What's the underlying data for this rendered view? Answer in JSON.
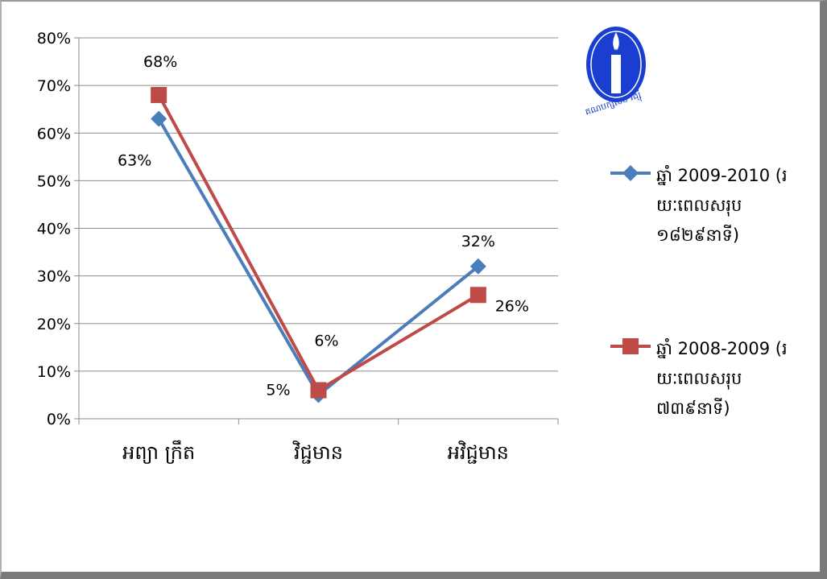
{
  "chart_data": {
    "type": "line",
    "categories": [
      "អព្យា ក្រឹត",
      "វិជ្ជមាន",
      "អវិជ្ជមាន"
    ],
    "ylim": [
      0,
      0.8
    ],
    "yticks": [
      "0%",
      "10%",
      "20%",
      "30%",
      "40%",
      "50%",
      "60%",
      "70%",
      "80%"
    ],
    "grid": true,
    "legend_position": "right",
    "series": [
      {
        "name_lines": [
          "ឆ្នាំ 2009-2010 (រ",
          "យៈពេលសរុប",
          "១៨២៩នាទី)"
        ],
        "color": "#4a7ebb",
        "marker": "diamond",
        "values": [
          0.63,
          0.05,
          0.32
        ],
        "labels": [
          "63%",
          "5%",
          "32%"
        ]
      },
      {
        "name_lines": [
          "ឆ្នាំ 2008-2009 (រ",
          "យៈពេលសរុប",
          "៧៣៩នាទី)"
        ],
        "color": "#be4b48",
        "marker": "square",
        "values": [
          0.68,
          0.06,
          0.26
        ],
        "labels": [
          "68%",
          "6%",
          "26%"
        ]
      }
    ]
  },
  "logo": {
    "icon": "candle-logo-icon",
    "text": "គណបក្សសម រង្ស៊ី",
    "color": "#1a3fd0"
  }
}
